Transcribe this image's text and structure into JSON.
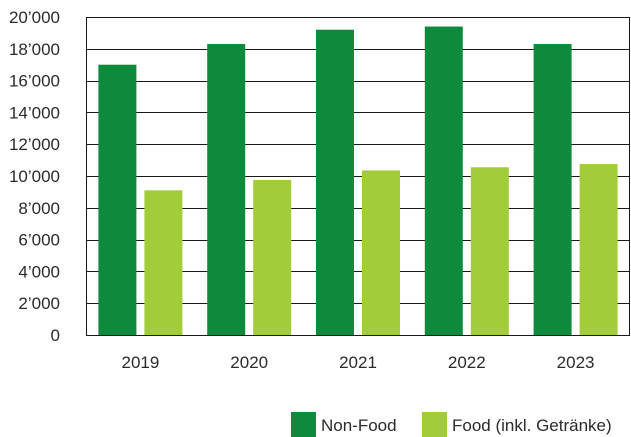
{
  "colors": {
    "non_food": "#0e8a3c",
    "food": "#a2cc3a",
    "grid": "#1a1a1a",
    "text": "#2b2b2b"
  },
  "legend": {
    "items": [
      {
        "label": "Non-Food",
        "color": "#0e8a3c"
      },
      {
        "label": "Food (inkl. Getränke)",
        "color": "#a2cc3a"
      }
    ],
    "placement": "bottom-right"
  },
  "chart_data": {
    "type": "bar",
    "title": "",
    "xlabel": "",
    "ylabel": "",
    "categories": [
      "2019",
      "2020",
      "2021",
      "2022",
      "2023"
    ],
    "series": [
      {
        "name": "Non-Food",
        "values": [
          17000,
          18300,
          19200,
          19400,
          18300
        ]
      },
      {
        "name": "Food (inkl. Getränke)",
        "values": [
          9100,
          9750,
          10350,
          10550,
          10750
        ]
      }
    ],
    "ylim": [
      0,
      20000
    ],
    "yticks": [
      0,
      2000,
      4000,
      6000,
      8000,
      10000,
      12000,
      14000,
      16000,
      18000,
      20000
    ],
    "ytick_labels": [
      "0",
      "2’000",
      "4’000",
      "6’000",
      "8’000",
      "10’000",
      "12’000",
      "14’000",
      "16’000",
      "18’000",
      "20’000"
    ],
    "grid": true
  }
}
